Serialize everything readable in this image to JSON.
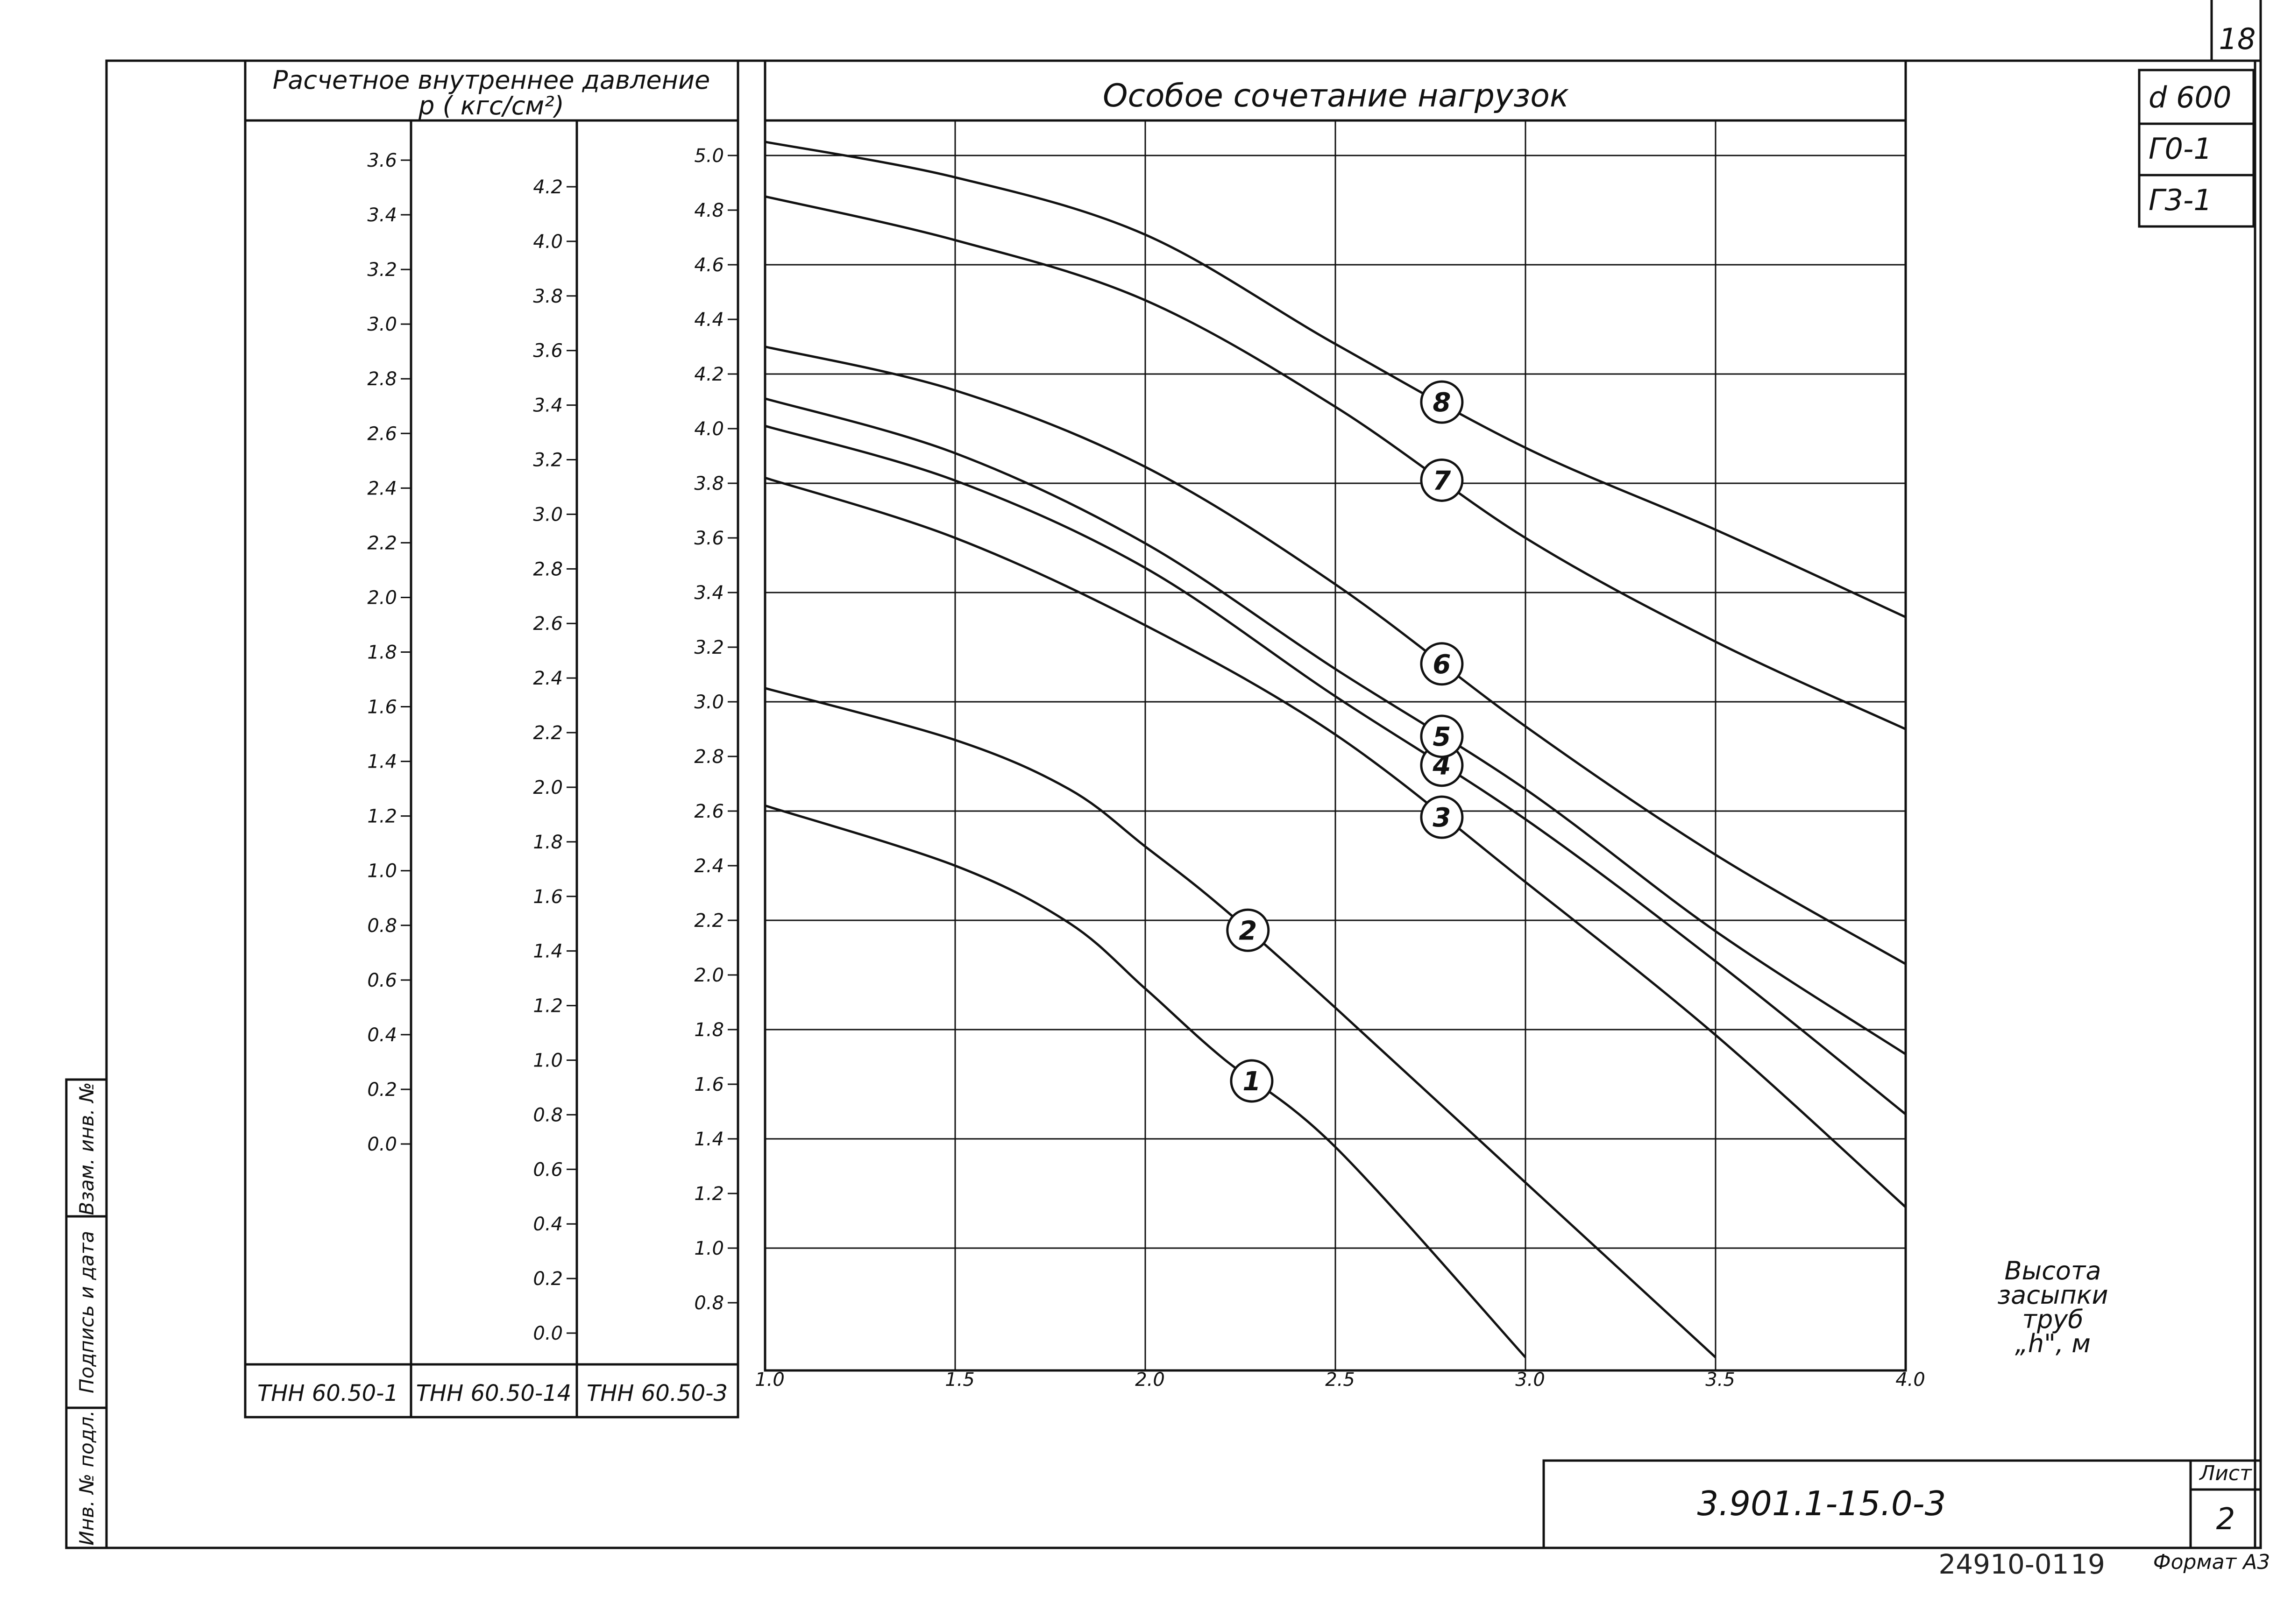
{
  "sheet": {
    "sheet_number": "18",
    "diameter": "d 600",
    "gamma0": "Г0-1",
    "gamma3": "Г3-1",
    "doc_code": "3.901.1-15.0-3",
    "sheet_label": "Лист",
    "sheet_page": "2",
    "archive_number": "24910-01",
    "archive_page": "19",
    "format": "Формат А3"
  },
  "side_stamp": {
    "inv_orig": "Инв. № подл.",
    "signature_date": "Подпись и дата",
    "replace_inv": "Взам. инв. №"
  },
  "table": {
    "header_line1": "Расчетное внутреннее давление",
    "header_line2": "p ( кгс/см²)",
    "columns": [
      {
        "name": "ТНН 60.50-1",
        "ticks": [
          "3.6",
          "3.4",
          "3.2",
          "3.0",
          "2.8",
          "2.6",
          "2.4",
          "2.2",
          "2.0",
          "1.8",
          "1.6",
          "1.4",
          "1.2",
          "1.0",
          "0.8",
          "0.6",
          "0.4",
          "0.2",
          "0.0"
        ],
        "values": [
          3.6,
          3.4,
          3.2,
          3.0,
          2.8,
          2.6,
          2.4,
          2.2,
          2.0,
          1.8,
          1.6,
          1.4,
          1.2,
          1.0,
          0.8,
          0.6,
          0.4,
          0.2,
          0.0
        ]
      },
      {
        "name": "ТНН 60.50-14",
        "ticks": [
          "4.2",
          "4.0",
          "3.8",
          "3.6",
          "3.4",
          "3.2",
          "3.0",
          "2.8",
          "2.6",
          "2.4",
          "2.2",
          "2.0",
          "1.8",
          "1.6",
          "1.4",
          "1.2",
          "1.0",
          "0.8",
          "0.6",
          "0.4",
          "0.2",
          "0.0"
        ],
        "values": [
          4.2,
          4.0,
          3.8,
          3.6,
          3.4,
          3.2,
          3.0,
          2.8,
          2.6,
          2.4,
          2.2,
          2.0,
          1.8,
          1.6,
          1.4,
          1.2,
          1.0,
          0.8,
          0.6,
          0.4,
          0.2,
          0.0
        ]
      },
      {
        "name": "ТНН 60.50-3",
        "ticks": [
          "5.0",
          "4.8",
          "4.6",
          "4.4",
          "4.2",
          "4.0",
          "3.8",
          "3.6",
          "3.4",
          "3.2",
          "3.0",
          "2.8",
          "2.6",
          "2.4",
          "2.2",
          "2.0",
          "1.8",
          "1.6",
          "1.4",
          "1.2",
          "1.0",
          "0.8"
        ],
        "values": [
          5.0,
          4.8,
          4.6,
          4.4,
          4.2,
          4.0,
          3.8,
          3.6,
          3.4,
          3.2,
          3.0,
          2.8,
          2.6,
          2.4,
          2.2,
          2.0,
          1.8,
          1.6,
          1.4,
          1.2,
          1.0,
          0.8
        ]
      }
    ]
  },
  "chart_data": {
    "type": "line",
    "title": "Особое сочетание нагрузок",
    "xlabel": "Высота засыпки труб „h\", м",
    "x_tick_labels": [
      "1.0",
      "1.5",
      "2.0",
      "2.5",
      "3.0",
      "3.5",
      "4.0"
    ],
    "x_ticks": [
      1.0,
      1.5,
      2.0,
      2.5,
      3.0,
      3.5,
      4.0
    ],
    "xlim": [
      1.0,
      4.0
    ],
    "ylabel_ref": "ТНН 60.50-3",
    "ylim": [
      0.6,
      5.2
    ],
    "grid": true,
    "series": [
      {
        "name": "1",
        "label_at": 2.28,
        "x": [
          1.0,
          1.5,
          1.8,
          2.0,
          2.2,
          2.5,
          3.0
        ],
        "y": [
          2.62,
          2.4,
          2.19,
          1.95,
          1.7,
          1.37,
          0.6
        ]
      },
      {
        "name": "2",
        "label_at": 2.27,
        "x": [
          1.0,
          1.5,
          1.8,
          2.0,
          2.2,
          2.5,
          3.0,
          3.5
        ],
        "y": [
          3.05,
          2.86,
          2.68,
          2.47,
          2.25,
          1.88,
          1.24,
          0.6
        ]
      },
      {
        "name": "3",
        "label_at": 2.78,
        "x": [
          1.0,
          1.5,
          2.0,
          2.5,
          3.0,
          3.5,
          4.0
        ],
        "y": [
          3.82,
          3.6,
          3.28,
          2.88,
          2.34,
          1.78,
          1.15
        ]
      },
      {
        "name": "4",
        "label_at": 2.78,
        "x": [
          1.0,
          1.5,
          2.0,
          2.5,
          3.0,
          3.5,
          4.0
        ],
        "y": [
          4.01,
          3.81,
          3.49,
          3.02,
          2.57,
          2.05,
          1.49
        ]
      },
      {
        "name": "5",
        "label_at": 2.78,
        "x": [
          1.0,
          1.5,
          2.0,
          2.5,
          3.0,
          3.5,
          4.0
        ],
        "y": [
          4.11,
          3.91,
          3.58,
          3.12,
          2.68,
          2.16,
          1.71
        ]
      },
      {
        "name": "6",
        "label_at": 2.78,
        "x": [
          1.0,
          1.5,
          2.0,
          2.5,
          3.0,
          3.5,
          4.0
        ],
        "y": [
          4.3,
          4.14,
          3.86,
          3.43,
          2.91,
          2.44,
          2.04
        ]
      },
      {
        "name": "7",
        "label_at": 2.78,
        "x": [
          1.0,
          1.5,
          2.0,
          2.5,
          3.0,
          3.5,
          4.0
        ],
        "y": [
          4.85,
          4.69,
          4.47,
          4.08,
          3.6,
          3.22,
          2.9
        ]
      },
      {
        "name": "8",
        "label_at": 2.78,
        "x": [
          1.0,
          1.5,
          2.0,
          2.5,
          3.0,
          3.5,
          4.0
        ],
        "y": [
          5.05,
          4.92,
          4.71,
          4.31,
          3.93,
          3.63,
          3.31
        ]
      }
    ]
  }
}
